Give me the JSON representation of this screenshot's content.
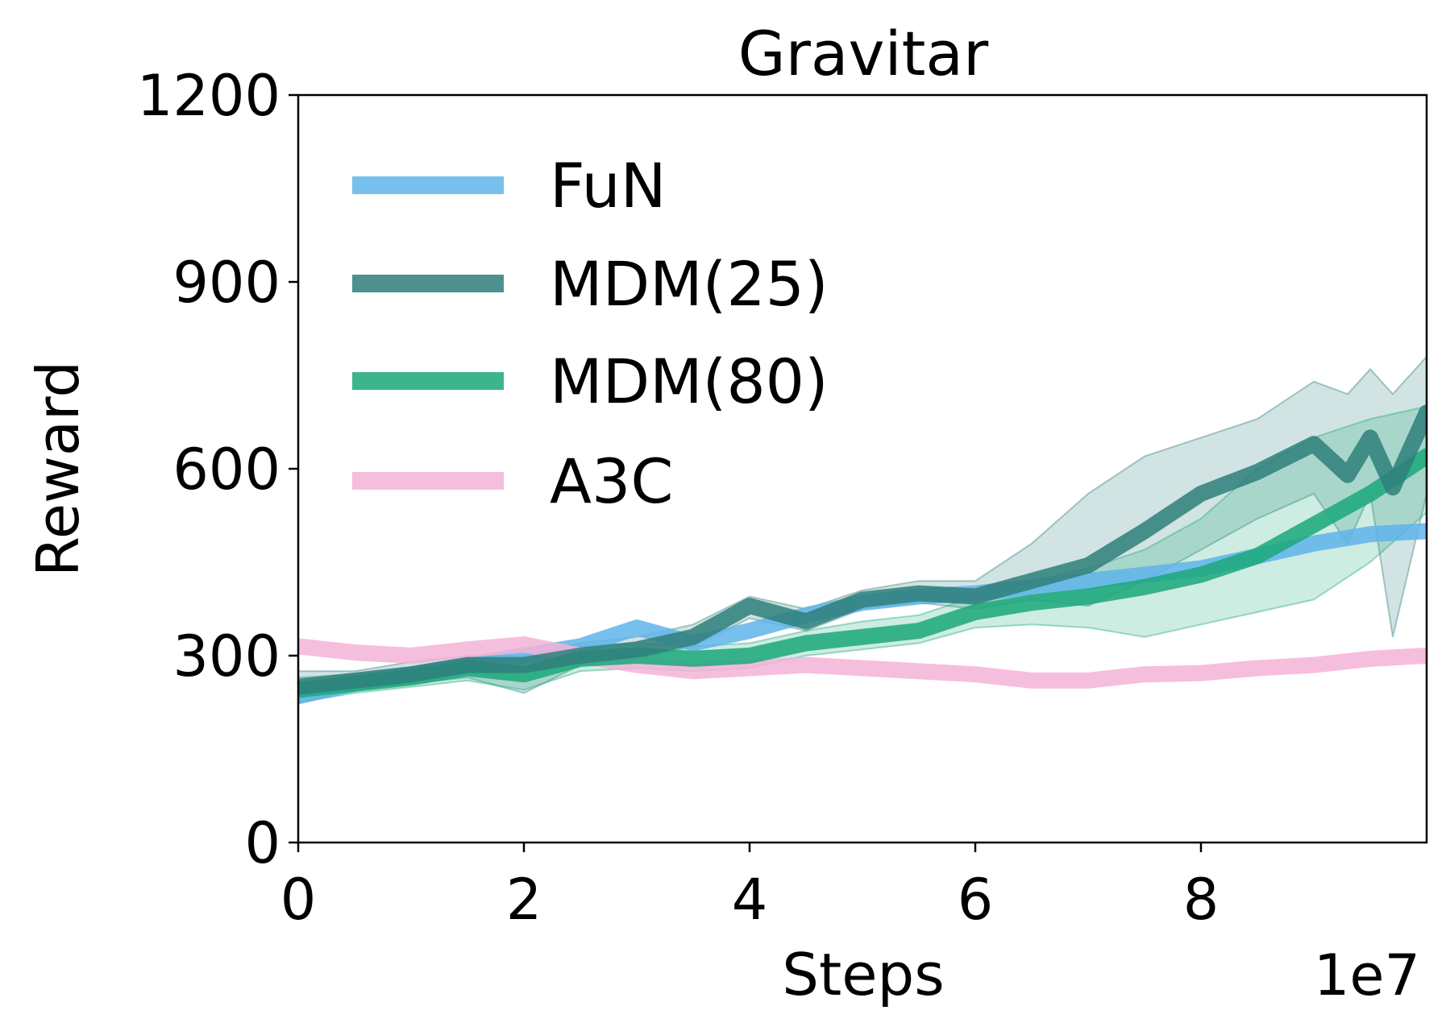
{
  "chart_data": {
    "type": "line",
    "title": "Gravitar",
    "xlabel": "Steps",
    "ylabel": "Reward",
    "x_offset_label": "1e7",
    "xlim": [
      0,
      10
    ],
    "ylim": [
      0,
      1200
    ],
    "xticks": [
      0,
      2,
      4,
      6,
      8
    ],
    "xtick_labels": [
      "0",
      "2",
      "4",
      "6",
      "8"
    ],
    "yticks": [
      0,
      300,
      600,
      900,
      1200
    ],
    "ytick_labels": [
      "0",
      "300",
      "600",
      "900",
      "1200"
    ],
    "grid": false,
    "legend_position": "top-left",
    "series": [
      {
        "name": "FuN",
        "color": "#5fb4ea",
        "x": [
          0,
          0.5,
          1,
          1.5,
          2,
          2.5,
          3,
          3.5,
          4,
          4.5,
          5,
          5.5,
          6,
          6.5,
          7,
          7.5,
          8,
          8.5,
          9,
          9.5,
          10
        ],
        "values": [
          235,
          255,
          270,
          285,
          300,
          315,
          345,
          320,
          340,
          365,
          385,
          395,
          400,
          410,
          420,
          430,
          440,
          460,
          480,
          495,
          500
        ]
      },
      {
        "name": "MDM(25)",
        "color": "#2e7f7a",
        "x": [
          0,
          0.5,
          1,
          1.5,
          2,
          2.5,
          3,
          3.5,
          4,
          4.5,
          5,
          5.5,
          6,
          6.5,
          7,
          7.5,
          8,
          8.5,
          9,
          9.3,
          9.5,
          9.7,
          10
        ],
        "values": [
          250,
          260,
          270,
          285,
          285,
          300,
          310,
          330,
          380,
          355,
          390,
          400,
          395,
          420,
          445,
          500,
          560,
          595,
          640,
          590,
          650,
          570,
          690
        ],
        "band_upper": [
          275,
          275,
          290,
          300,
          300,
          320,
          330,
          350,
          395,
          375,
          405,
          420,
          420,
          480,
          560,
          620,
          650,
          680,
          740,
          720,
          760,
          720,
          780
        ],
        "band_lower": [
          225,
          245,
          255,
          265,
          240,
          285,
          295,
          315,
          360,
          340,
          375,
          385,
          375,
          390,
          380,
          420,
          470,
          520,
          560,
          480,
          560,
          330,
          560
        ]
      },
      {
        "name": "MDM(80)",
        "color": "#1aa87a",
        "x": [
          0,
          0.5,
          1,
          1.5,
          2,
          2.5,
          3,
          3.5,
          4,
          4.5,
          5,
          5.5,
          6,
          6.5,
          7,
          7.5,
          8,
          8.5,
          9,
          9.5,
          10
        ],
        "values": [
          245,
          255,
          265,
          280,
          270,
          295,
          300,
          295,
          300,
          320,
          330,
          340,
          370,
          385,
          395,
          410,
          430,
          460,
          510,
          560,
          620
        ],
        "band_upper": [
          265,
          270,
          280,
          295,
          295,
          315,
          320,
          315,
          320,
          340,
          355,
          365,
          395,
          420,
          440,
          470,
          520,
          600,
          650,
          680,
          700
        ],
        "band_lower": [
          225,
          240,
          250,
          260,
          245,
          275,
          280,
          275,
          280,
          300,
          310,
          320,
          345,
          350,
          345,
          330,
          350,
          370,
          390,
          450,
          530
        ]
      },
      {
        "name": "A3C",
        "color": "#f4b3d7",
        "x": [
          0,
          0.5,
          1,
          1.5,
          2,
          2.5,
          3,
          3.5,
          4,
          4.5,
          5,
          5.5,
          6,
          6.5,
          7,
          7.5,
          8,
          8.5,
          9,
          9.5,
          10
        ],
        "values": [
          315,
          305,
          300,
          310,
          318,
          300,
          285,
          275,
          280,
          285,
          280,
          275,
          270,
          260,
          260,
          270,
          272,
          280,
          285,
          295,
          300
        ]
      }
    ]
  }
}
